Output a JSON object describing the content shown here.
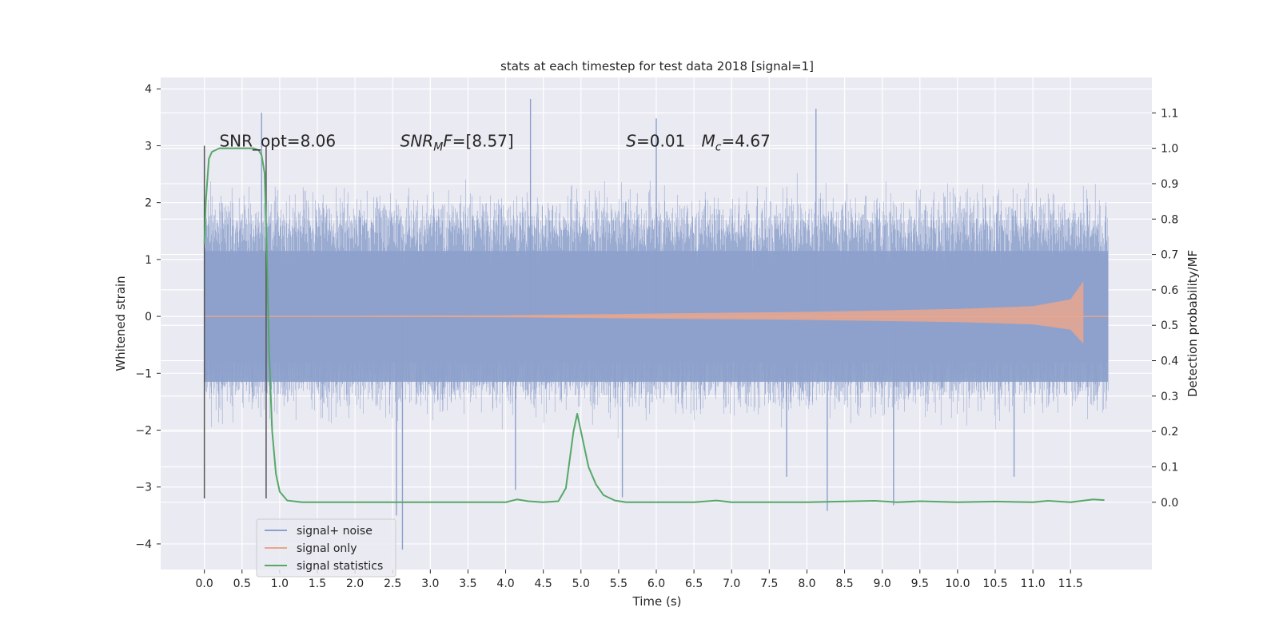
{
  "chart_data": {
    "type": "line",
    "title": "stats at each timestep for test data 2018 [signal=1]",
    "xlabel": "Time (s)",
    "ylabel_left": "Whitened strain",
    "ylabel_right": "Detection probability/MF",
    "xlim": [
      -0.58,
      12.58
    ],
    "ylim_left": [
      -4.45,
      4.2
    ],
    "ylim_right": [
      -0.19,
      1.2
    ],
    "x_ticks": [
      0.0,
      0.5,
      1.0,
      1.5,
      2.0,
      2.5,
      3.0,
      3.5,
      4.0,
      4.5,
      5.0,
      5.5,
      6.0,
      6.5,
      7.0,
      7.5,
      8.0,
      8.5,
      9.0,
      9.5,
      10.0,
      10.5,
      11.0,
      11.5
    ],
    "x_tick_labels": [
      "0.0",
      "0.5",
      "1.0",
      "1.5",
      "2.0",
      "2.5",
      "3.0",
      "3.5",
      "4.0",
      "4.5",
      "5.0",
      "5.5",
      "6.0",
      "6.5",
      "7.0",
      "7.5",
      "8.0",
      "8.5",
      "9.0",
      "9.5",
      "10.0",
      "10.5",
      "11.0",
      "11.5"
    ],
    "y_left_ticks": [
      -4,
      -3,
      -2,
      -1,
      0,
      1,
      2,
      3,
      4
    ],
    "y_left_tick_labels": [
      "−4",
      "−3",
      "−2",
      "−1",
      "0",
      "1",
      "2",
      "3",
      "4"
    ],
    "y_right_ticks": [
      0.0,
      0.1,
      0.2,
      0.3,
      0.4,
      0.5,
      0.6,
      0.7,
      0.8,
      0.9,
      1.0,
      1.1
    ],
    "y_right_tick_labels": [
      "0.0",
      "0.1",
      "0.2",
      "0.3",
      "0.4",
      "0.5",
      "0.6",
      "0.7",
      "0.8",
      "0.9",
      "1.0",
      "1.1"
    ],
    "grid": true,
    "legend_position": "lower-left",
    "annotations": [
      {
        "text": "SNR_opt=8.06",
        "x": 0.2,
        "y": 3.0
      },
      {
        "text": "SNR_MF=[8.57]",
        "x": 2.6,
        "y": 3.0
      },
      {
        "text": "S=0.01",
        "x": 5.6,
        "y": 3.0
      },
      {
        "text": "M_c=4.67",
        "x": 6.6,
        "y": 3.0
      }
    ],
    "vertical_markers": [
      {
        "x": 0.0,
        "y_range": [
          -3.2,
          3.0
        ],
        "color": "#555555"
      },
      {
        "x": 0.82,
        "y_range": [
          -3.2,
          3.0
        ],
        "color": "#555555"
      }
    ],
    "series": [
      {
        "name": "signal+ noise",
        "axis": "left",
        "color": "#8ca0cb",
        "x_range": [
          0.0,
          12.0
        ],
        "typical_envelope": [
          -1.3,
          1.8
        ],
        "extreme_values": {
          "max": 3.85,
          "min": -4.1
        },
        "spikes": [
          {
            "x": 0.76,
            "y": 3.58
          },
          {
            "x": 2.63,
            "y": -4.1
          },
          {
            "x": 2.55,
            "y": -3.5
          },
          {
            "x": 4.33,
            "y": 3.82
          },
          {
            "x": 8.12,
            "y": 3.65
          },
          {
            "x": 8.27,
            "y": -3.42
          },
          {
            "x": 6.0,
            "y": 3.48
          },
          {
            "x": 9.15,
            "y": -3.32
          },
          {
            "x": 4.13,
            "y": -3.05
          },
          {
            "x": 5.55,
            "y": -3.18
          },
          {
            "x": 7.73,
            "y": -2.82
          },
          {
            "x": 10.75,
            "y": -2.82
          }
        ]
      },
      {
        "name": "signal only",
        "axis": "left",
        "color": "#e9a68d",
        "x_range": [
          0.0,
          11.67
        ],
        "amplitude_envelope": [
          [
            0.0,
            0.0
          ],
          [
            4.0,
            0.02
          ],
          [
            6.0,
            0.05
          ],
          [
            8.0,
            0.08
          ],
          [
            10.0,
            0.13
          ],
          [
            11.0,
            0.18
          ],
          [
            11.5,
            0.3
          ],
          [
            11.67,
            0.62
          ]
        ],
        "after_end_value": 0.0
      },
      {
        "name": "signal statistics",
        "axis": "right",
        "color": "#55a868",
        "x": [
          0.0,
          0.02,
          0.06,
          0.1,
          0.2,
          0.35,
          0.5,
          0.65,
          0.72,
          0.76,
          0.8,
          0.83,
          0.86,
          0.9,
          0.95,
          1.0,
          1.1,
          1.3,
          2.0,
          3.0,
          4.0,
          4.15,
          4.3,
          4.5,
          4.7,
          4.8,
          4.9,
          4.95,
          5.0,
          5.1,
          5.2,
          5.3,
          5.45,
          5.6,
          6.0,
          6.5,
          6.8,
          7.0,
          8.0,
          8.9,
          9.2,
          9.5,
          10.0,
          10.5,
          11.0,
          11.2,
          11.5,
          11.8,
          11.95
        ],
        "y": [
          0.73,
          0.85,
          0.97,
          0.99,
          1.0,
          1.0,
          1.0,
          1.0,
          0.995,
          0.98,
          0.93,
          0.7,
          0.42,
          0.2,
          0.08,
          0.03,
          0.005,
          0.0,
          0.0,
          0.0,
          0.0,
          0.008,
          0.003,
          0.0,
          0.003,
          0.04,
          0.2,
          0.25,
          0.2,
          0.1,
          0.05,
          0.02,
          0.005,
          0.0,
          0.0,
          0.0,
          0.005,
          0.0,
          0.0,
          0.004,
          0.0,
          0.003,
          0.0,
          0.002,
          0.0,
          0.004,
          0.0,
          0.008,
          0.006
        ]
      }
    ]
  }
}
